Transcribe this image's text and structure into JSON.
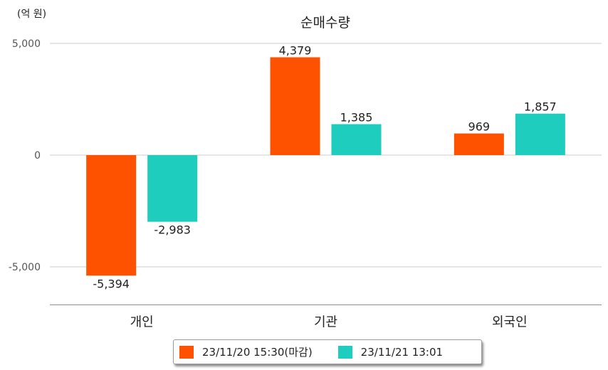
{
  "unit_label": "(억 원)",
  "chart_data": {
    "type": "bar",
    "title": "순매수량",
    "categories": [
      "개인",
      "기관",
      "외국인"
    ],
    "series": [
      {
        "name": "23/11/20 15:30(마감)",
        "color": "#ff5200",
        "values": [
          -5394,
          4379,
          969
        ],
        "labels": [
          "-5,394",
          "4,379",
          "969"
        ]
      },
      {
        "name": "23/11/21 13:01",
        "color": "#1ecdbd",
        "values": [
          -2983,
          1385,
          1857
        ],
        "labels": [
          "-2,983",
          "1,385",
          "1,857"
        ]
      }
    ],
    "yticks": [
      5000,
      0,
      -5000
    ],
    "ytick_labels": [
      "5,000",
      "0",
      "-5,000"
    ],
    "ylim": [
      -6700,
      5000
    ],
    "grid": true,
    "legend_position": "bottom"
  }
}
